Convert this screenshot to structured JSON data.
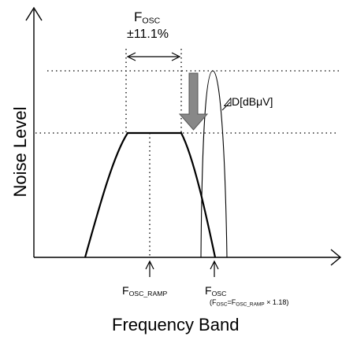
{
  "labels": {
    "y_axis": "Noise Level",
    "x_axis": "Frequency Band",
    "top_f": "F",
    "top_f_sub": "OSC",
    "spread": "±11.1%",
    "delta": "D[dBμV]",
    "ramp_f": "F",
    "ramp_sub": "OSC_RAMP",
    "osc_f": "F",
    "osc_sub": "OSC",
    "formula_open": "(F",
    "formula_sub1": "OSC",
    "formula_eq": "=F",
    "formula_sub2": "OSC_RAMP",
    "formula_tail": " × 1.18)"
  },
  "colors": {
    "line": "#000000",
    "arrow_fill": "#888888",
    "arrow_stroke": "#555555"
  }
}
